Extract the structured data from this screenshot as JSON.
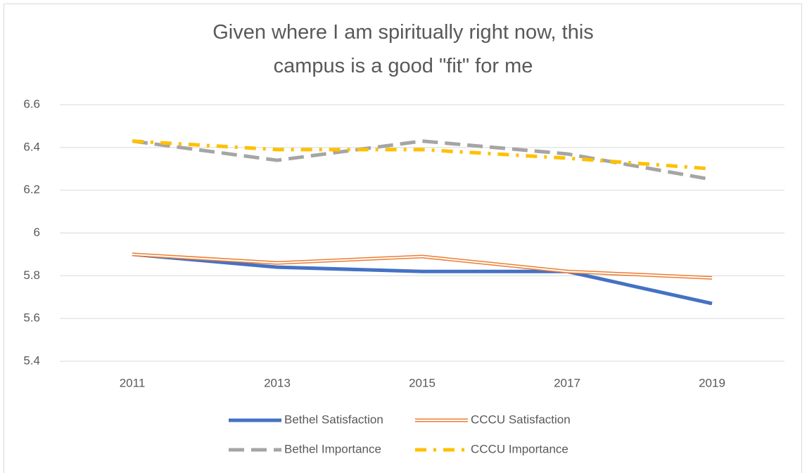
{
  "chart_data": {
    "type": "line",
    "title": "Given where I am spiritually right now, this campus is a good \"fit\" for me",
    "categories": [
      "2011",
      "2013",
      "2015",
      "2017",
      "2019"
    ],
    "series": [
      {
        "name": "Bethel Satisfaction",
        "color": "#4472c4",
        "values": [
          5.9,
          5.84,
          5.82,
          5.82,
          5.67
        ]
      },
      {
        "name": "CCCU Satisfaction",
        "color": "#ed7d31",
        "values": [
          5.9,
          5.86,
          5.89,
          5.82,
          5.79
        ]
      },
      {
        "name": "Bethel Importance",
        "color": "#a5a5a5",
        "values": [
          6.43,
          6.34,
          6.43,
          6.37,
          6.25
        ]
      },
      {
        "name": "CCCU Importance",
        "color": "#ffc000",
        "values": [
          6.43,
          6.39,
          6.39,
          6.35,
          6.3
        ]
      }
    ],
    "ylim": [
      5.4,
      6.6
    ],
    "yticks": [
      5.4,
      5.6,
      5.8,
      6,
      6.2,
      6.4,
      6.6
    ],
    "grid": true
  }
}
